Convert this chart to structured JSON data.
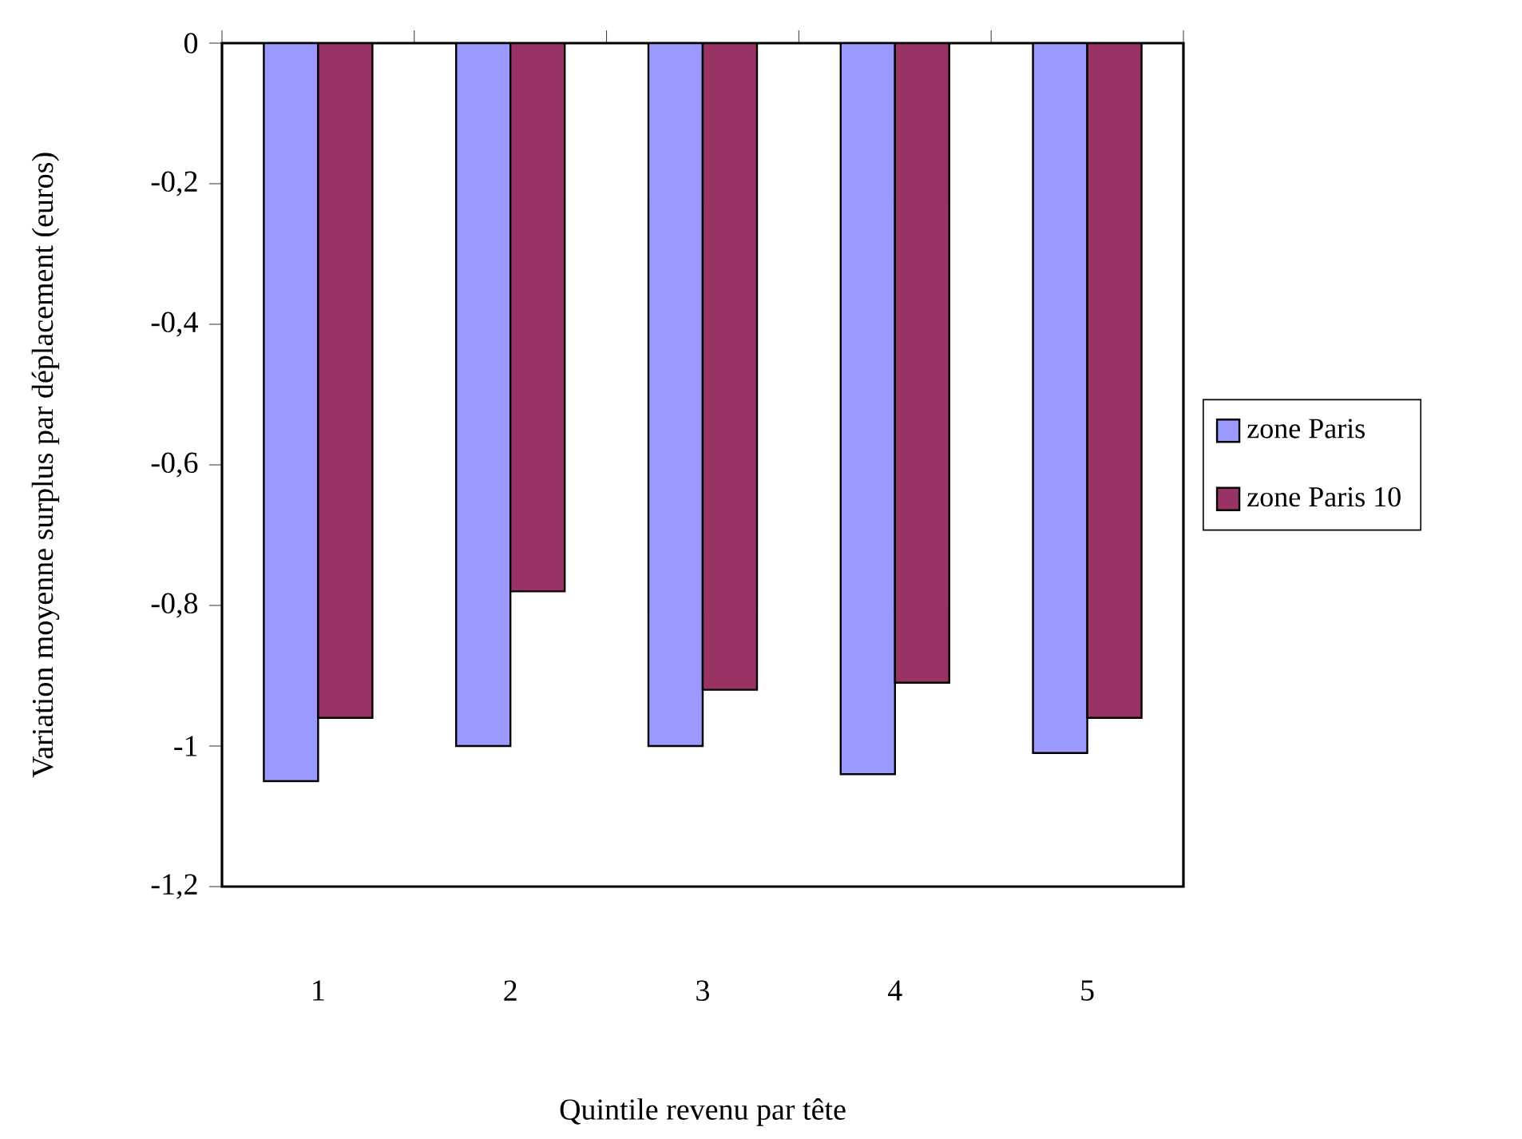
{
  "chart_data": {
    "type": "bar",
    "xlabel": "Quintile revenu par tête",
    "ylabel": "Variation moyenne surplus par déplacement (euros)",
    "categories": [
      "1",
      "2",
      "3",
      "4",
      "5"
    ],
    "series": [
      {
        "name": "zone Paris",
        "color": "#9999ff",
        "values": [
          -1.05,
          -1.0,
          -1.0,
          -1.04,
          -1.01
        ]
      },
      {
        "name": "zone Paris 10",
        "color": "#993366",
        "values": [
          -0.96,
          -0.78,
          -0.92,
          -0.91,
          -0.96
        ]
      }
    ],
    "ylim": [
      -1.2,
      0
    ],
    "yticks": [
      {
        "value": 0,
        "label": "0"
      },
      {
        "value": -0.2,
        "label": "-0,2"
      },
      {
        "value": -0.4,
        "label": "-0,4"
      },
      {
        "value": -0.6,
        "label": "-0,6"
      },
      {
        "value": -0.8,
        "label": "-0,8"
      },
      {
        "value": -1,
        "label": "-1"
      },
      {
        "value": -1.2,
        "label": "-1,2"
      }
    ],
    "grid": false,
    "legend": "right"
  }
}
